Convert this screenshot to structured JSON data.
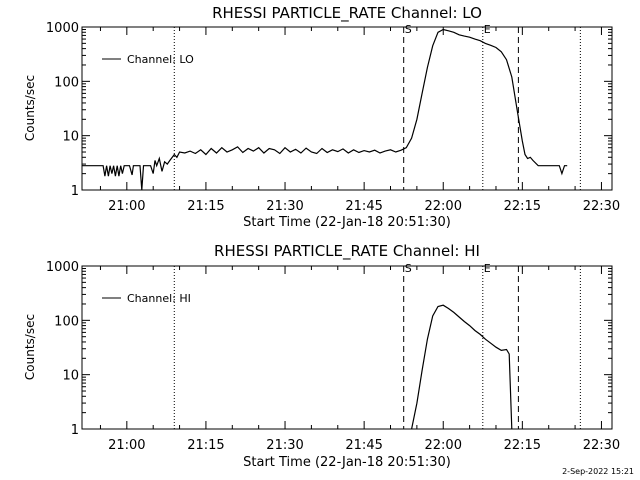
{
  "footer": {
    "date_stamp": "2-Sep-2022 15:21"
  },
  "chart_data": [
    {
      "type": "line",
      "title": "RHESSI PARTICLE_RATE Channel: LO",
      "xlabel": "Start Time (22-Jan-18 20:51:30)",
      "ylabel": "Counts/sec",
      "y_scale": "log",
      "ylim": [
        1,
        1000
      ],
      "xlim": [
        "20:51:30",
        "22:32:00"
      ],
      "x_ticks": [
        "21:00",
        "21:15",
        "21:30",
        "21:45",
        "22:00",
        "22:15",
        "22:30"
      ],
      "y_ticks": [
        "1",
        "10",
        "100",
        "1000"
      ],
      "legend": {
        "position": "top-left",
        "entries": [
          "Channel: LO"
        ]
      },
      "markers": [
        {
          "label": "",
          "time": "21:09:00",
          "style": "dotted"
        },
        {
          "label": "S",
          "time": "21:52:30",
          "style": "dashed"
        },
        {
          "label": "E",
          "time": "22:07:30",
          "style": "dotted"
        },
        {
          "label": "",
          "time": "22:14:15",
          "style": "dashed"
        },
        {
          "label": "",
          "time": "22:26:00",
          "style": "dotted"
        }
      ],
      "series": [
        {
          "name": "Channel: LO",
          "x": [
            "20:51:30",
            "20:55:30",
            "20:55:50",
            "20:56:10",
            "20:56:30",
            "20:56:50",
            "20:57:10",
            "20:57:30",
            "20:57:50",
            "20:58:10",
            "20:58:30",
            "20:58:50",
            "20:59:10",
            "20:59:30",
            "20:59:50",
            "21:00:30",
            "21:01:00",
            "21:01:15",
            "21:01:30",
            "21:02:10",
            "21:02:30",
            "21:02:50",
            "21:03:10",
            "21:03:30",
            "21:04:30",
            "21:05:00",
            "21:05:20",
            "21:05:40",
            "21:06:10",
            "21:06:40",
            "21:07:10",
            "21:07:40",
            "21:08:10",
            "21:09:00",
            "21:09:30",
            "21:10:00",
            "21:11:00",
            "21:12:00",
            "21:13:00",
            "21:14:00",
            "21:15:00",
            "21:16:00",
            "21:17:00",
            "21:18:00",
            "21:19:00",
            "21:20:00",
            "21:21:00",
            "21:22:00",
            "21:23:00",
            "21:24:00",
            "21:25:00",
            "21:26:00",
            "21:27:00",
            "21:28:00",
            "21:29:00",
            "21:30:00",
            "21:31:00",
            "21:32:00",
            "21:33:00",
            "21:34:00",
            "21:35:00",
            "21:36:00",
            "21:37:00",
            "21:38:00",
            "21:39:00",
            "21:40:00",
            "21:41:00",
            "21:42:00",
            "21:43:00",
            "21:44:00",
            "21:45:00",
            "21:46:00",
            "21:47:00",
            "21:48:00",
            "21:49:00",
            "21:50:00",
            "21:51:00",
            "21:52:00",
            "21:53:00",
            "21:54:00",
            "21:55:00",
            "21:56:00",
            "21:57:00",
            "21:58:00",
            "21:59:00",
            "22:00:00",
            "22:01:00",
            "22:02:00",
            "22:03:00",
            "22:04:00",
            "22:05:00",
            "22:06:00",
            "22:07:00",
            "22:08:00",
            "22:09:00",
            "22:10:00",
            "22:11:00",
            "22:12:00",
            "22:13:00",
            "22:14:00",
            "22:15:00",
            "22:15:30",
            "22:16:00",
            "22:16:30",
            "22:17:00",
            "22:18:00",
            "22:19:00",
            "22:20:00",
            "22:21:00",
            "22:22:00",
            "22:22:30",
            "22:23:00",
            "22:23:30"
          ],
          "y": [
            2.8,
            2.8,
            1.8,
            2.8,
            1.8,
            2.8,
            2.0,
            2.8,
            1.8,
            2.8,
            1.8,
            2.8,
            2.0,
            2.8,
            2.8,
            2.8,
            1.9,
            2.8,
            2.8,
            2.8,
            2.8,
            1.0,
            2.8,
            2.8,
            2.8,
            2.0,
            3.5,
            2.8,
            3.8,
            2.2,
            3.3,
            3.0,
            3.5,
            4.5,
            4.0,
            5.0,
            4.8,
            5.2,
            4.7,
            5.5,
            4.5,
            5.8,
            4.8,
            6.0,
            5.0,
            5.5,
            6.2,
            4.9,
            5.8,
            5.2,
            6.0,
            4.8,
            5.8,
            5.5,
            4.7,
            6.0,
            5.0,
            5.6,
            4.8,
            5.9,
            5.0,
            4.7,
            5.8,
            4.9,
            5.5,
            5.1,
            5.7,
            4.8,
            5.5,
            4.9,
            5.3,
            5.0,
            5.4,
            4.8,
            5.2,
            5.5,
            5.0,
            5.4,
            6.0,
            9.0,
            20,
            60,
            180,
            450,
            800,
            900,
            850,
            800,
            720,
            680,
            650,
            600,
            560,
            500,
            460,
            420,
            350,
            250,
            120,
            30,
            8.0,
            4.5,
            3.8,
            4.0,
            3.5,
            2.8,
            2.8,
            2.8,
            2.8,
            2.8,
            2.0,
            2.8,
            2.8
          ]
        }
      ]
    },
    {
      "type": "line",
      "title": "RHESSI PARTICLE_RATE Channel: HI",
      "xlabel": "Start Time (22-Jan-18 20:51:30)",
      "ylabel": "Counts/sec",
      "y_scale": "log",
      "ylim": [
        1,
        1000
      ],
      "xlim": [
        "20:51:30",
        "22:32:00"
      ],
      "x_ticks": [
        "21:00",
        "21:15",
        "21:30",
        "21:45",
        "22:00",
        "22:15",
        "22:30"
      ],
      "y_ticks": [
        "1",
        "10",
        "100",
        "1000"
      ],
      "legend": {
        "position": "top-left",
        "entries": [
          "Channel: HI"
        ]
      },
      "markers": [
        {
          "label": "",
          "time": "21:09:00",
          "style": "dotted"
        },
        {
          "label": "S",
          "time": "21:52:30",
          "style": "dashed"
        },
        {
          "label": "E",
          "time": "22:07:30",
          "style": "dotted"
        },
        {
          "label": "",
          "time": "22:14:15",
          "style": "dashed"
        },
        {
          "label": "",
          "time": "22:26:00",
          "style": "dotted"
        }
      ],
      "series": [
        {
          "name": "Channel: HI",
          "x": [
            "21:54:00",
            "21:55:00",
            "21:56:00",
            "21:57:00",
            "21:58:00",
            "21:59:00",
            "22:00:00",
            "22:01:00",
            "22:02:00",
            "22:03:00",
            "22:04:00",
            "22:05:00",
            "22:06:00",
            "22:07:00",
            "22:08:00",
            "22:09:00",
            "22:10:00",
            "22:11:00",
            "22:12:00",
            "22:12:30",
            "22:13:00"
          ],
          "y": [
            1.0,
            3.0,
            12,
            45,
            120,
            180,
            190,
            165,
            140,
            115,
            95,
            80,
            65,
            55,
            45,
            38,
            32,
            28,
            29,
            24,
            1.0
          ]
        }
      ]
    }
  ]
}
